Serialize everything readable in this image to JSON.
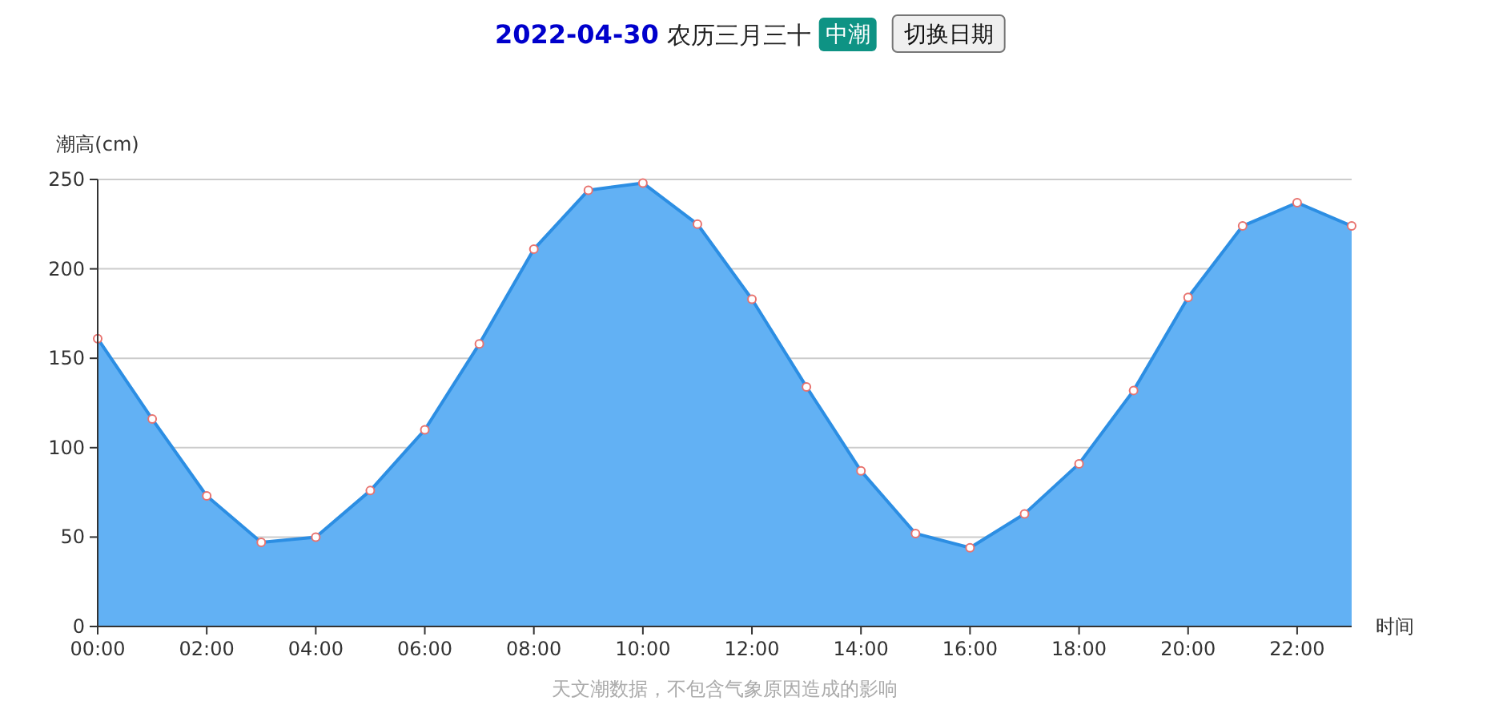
{
  "chart_data": {
    "type": "area",
    "title": "2022-04-30",
    "subtitle": "农历三月三十",
    "xlabel": "时间",
    "ylabel": "潮高(cm)",
    "annotations": [
      "中潮",
      "切换日期",
      "天文潮数据，不包含气象原因造成的影响"
    ],
    "x": [
      0,
      1,
      2,
      3,
      4,
      5,
      6,
      7,
      8,
      9,
      10,
      11,
      12,
      13,
      14,
      15,
      16,
      17,
      18,
      19,
      20,
      21,
      22,
      23
    ],
    "xlim": [
      0,
      23
    ],
    "xticks": [
      {
        "value": 0,
        "label": "00:00"
      },
      {
        "value": 2,
        "label": "02:00"
      },
      {
        "value": 4,
        "label": "04:00"
      },
      {
        "value": 6,
        "label": "06:00"
      },
      {
        "value": 8,
        "label": "08:00"
      },
      {
        "value": 10,
        "label": "10:00"
      },
      {
        "value": 12,
        "label": "12:00"
      },
      {
        "value": 14,
        "label": "14:00"
      },
      {
        "value": 16,
        "label": "16:00"
      },
      {
        "value": 18,
        "label": "18:00"
      },
      {
        "value": 20,
        "label": "20:00"
      },
      {
        "value": 22,
        "label": "22:00"
      }
    ],
    "ylim": [
      0,
      250
    ],
    "yticks": [
      0,
      50,
      100,
      150,
      200,
      250
    ],
    "grid": "y",
    "marker": "circle",
    "series": [
      {
        "color": "#62b1f4",
        "values": [
          161,
          116,
          73,
          47,
          50,
          76,
          110,
          158,
          211,
          244,
          248,
          225,
          183,
          134,
          87,
          52,
          44,
          63,
          91,
          132,
          184,
          224,
          237,
          224
        ]
      }
    ]
  }
}
